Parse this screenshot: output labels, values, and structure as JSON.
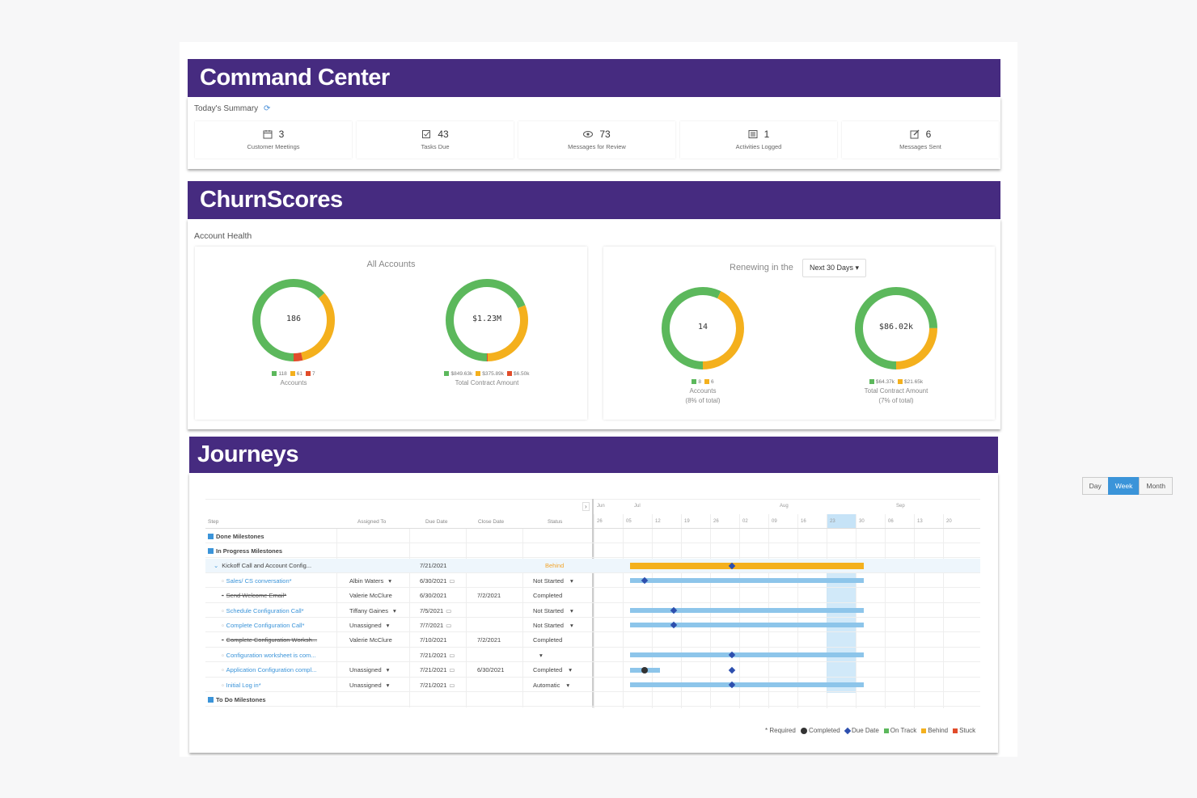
{
  "command_center": {
    "banner": "Command Center",
    "summary_title": "Today's Summary",
    "refresh_icon": "refresh-icon",
    "tiles": [
      {
        "icon": "calendar-icon",
        "value": "3",
        "label": "Customer Meetings"
      },
      {
        "icon": "checkbox-icon",
        "value": "43",
        "label": "Tasks Due"
      },
      {
        "icon": "eye-icon",
        "value": "73",
        "label": "Messages for Review"
      },
      {
        "icon": "list-icon",
        "value": "1",
        "label": "Activities Logged"
      },
      {
        "icon": "edit-icon",
        "value": "6",
        "label": "Messages Sent"
      }
    ]
  },
  "churn": {
    "banner": "ChurnScores",
    "section_title": "Account Health",
    "all_accounts_title": "All Accounts",
    "renewing_label": "Renewing in the",
    "renewing_select": "Next 30 Days ▾",
    "donuts": [
      {
        "center": "186",
        "legend": [
          "118",
          "61",
          "7"
        ],
        "caption": "Accounts",
        "caption2": "",
        "values": [
          118,
          61,
          7
        ]
      },
      {
        "center": "$1.23M",
        "legend": [
          "$849.63k",
          "$375.89k",
          "$6.50k"
        ],
        "caption": "Total Contract Amount",
        "caption2": "",
        "values": [
          849.63,
          375.89,
          6.5
        ]
      },
      {
        "center": "14",
        "legend": [
          "8",
          "6"
        ],
        "caption": "Accounts",
        "caption2": "(8% of total)",
        "values": [
          8,
          6,
          0
        ]
      },
      {
        "center": "$86.02k",
        "legend": [
          "$64.37k",
          "$21.65k"
        ],
        "caption": "Total Contract Amount",
        "caption2": "(7% of total)",
        "values": [
          64.37,
          21.65,
          0
        ]
      }
    ],
    "colors": {
      "green": "#5cb85c",
      "orange": "#f4b01d",
      "red": "#e14c2a"
    }
  },
  "journeys": {
    "banner": "Journeys",
    "view_buttons": [
      "Day",
      "Week",
      "Month"
    ],
    "active_view": "Week",
    "columns": [
      "Step",
      "Assigned To",
      "Due Date",
      "Close Date",
      "Status"
    ],
    "months": [
      "Jun",
      "Jul",
      "Aug",
      "Sep"
    ],
    "weeks": [
      "26",
      "05",
      "12",
      "19",
      "26",
      "02",
      "09",
      "16",
      "23",
      "30",
      "06",
      "13",
      "20"
    ],
    "rows": [
      {
        "step": "Done Milestones",
        "assigned": "",
        "due": "",
        "close": "",
        "status": "",
        "kind": "group"
      },
      {
        "step": "In Progress Milestones",
        "assigned": "",
        "due": "",
        "close": "",
        "status": "",
        "kind": "group"
      },
      {
        "step": "Kickoff Call and Account Config...",
        "assigned": "",
        "due": "7/21/2021",
        "close": "",
        "status": "Behind",
        "kind": "parent"
      },
      {
        "step": "Sales/ CS conversation*",
        "assigned": "Albin Waters",
        "due": "6/30/2021",
        "close": "",
        "status": "Not Started",
        "kind": "link"
      },
      {
        "step": "Send Welcome Email*",
        "assigned": "Valerie McClure",
        "due": "6/30/2021",
        "close": "7/2/2021",
        "status": "Completed",
        "kind": "strike"
      },
      {
        "step": "Schedule Configuration Call*",
        "assigned": "Tiffany Gaines",
        "due": "7/5/2021",
        "close": "",
        "status": "Not Started",
        "kind": "link"
      },
      {
        "step": "Complete Configuration Call*",
        "assigned": "Unassigned",
        "due": "7/7/2021",
        "close": "",
        "status": "Not Started",
        "kind": "link"
      },
      {
        "step": "Complete Configuration Worksh...",
        "assigned": "Valerie McClure",
        "due": "7/10/2021",
        "close": "7/2/2021",
        "status": "Completed",
        "kind": "strike"
      },
      {
        "step": "Configuration worksheet is com...",
        "assigned": "",
        "due": "7/21/2021",
        "close": "",
        "status": "",
        "kind": "link"
      },
      {
        "step": "Application Configuration compl...",
        "assigned": "Unassigned",
        "due": "7/21/2021",
        "close": "6/30/2021",
        "status": "Completed",
        "kind": "link"
      },
      {
        "step": "Initial Log in*",
        "assigned": "Unassigned",
        "due": "7/21/2021",
        "close": "",
        "status": "Automatic",
        "kind": "link"
      },
      {
        "step": "To Do Milestones",
        "assigned": "",
        "due": "",
        "close": "",
        "status": "",
        "kind": "group"
      }
    ],
    "legend": [
      "* Required",
      "Completed",
      "Due Date",
      "On Track",
      "Behind",
      "Stuck"
    ]
  }
}
